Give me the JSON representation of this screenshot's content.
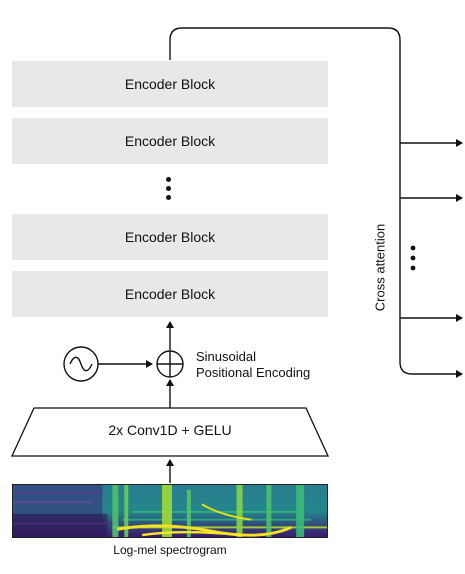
{
  "encoder_blocks": [
    {
      "label": "Encoder Block"
    },
    {
      "label": "Encoder Block"
    },
    {
      "label": "Encoder Block"
    },
    {
      "label": "Encoder Block"
    }
  ],
  "conv": {
    "label": "2x Conv1D + GELU"
  },
  "positional": {
    "line1": "Sinusoidal",
    "line2": "Positional Encoding"
  },
  "cross_attention": {
    "label": "Cross attention"
  },
  "input": {
    "label": "Log-mel spectrogram"
  },
  "icons": {
    "sine": "sine-wave-icon",
    "add": "circle-plus-icon",
    "ellipsis": "vertical-ellipsis-icon"
  },
  "colors": {
    "block_fill": "#e8e8e8",
    "line": "#111111",
    "spectrogram_low": "#3b1a6e",
    "spectrogram_mid": "#1f8f8b",
    "spectrogram_high": "#f2e125"
  }
}
